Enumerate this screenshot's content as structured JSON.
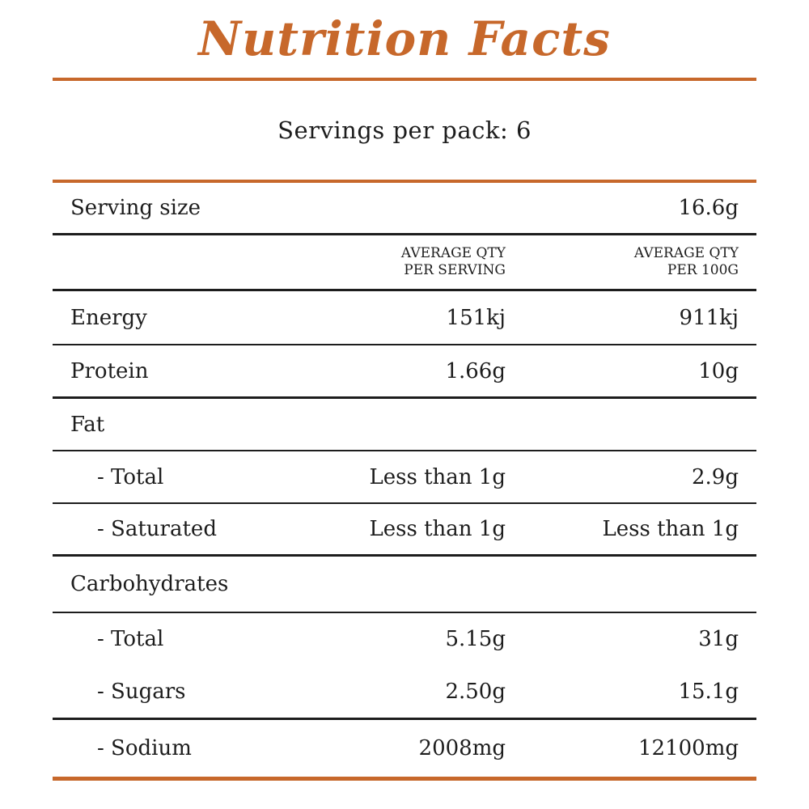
{
  "title": "Nutrition Facts",
  "servings_per_pack": "Servings per pack: 6",
  "serving_size": {
    "label": "Serving size",
    "value": "16.6g"
  },
  "columns": {
    "per_serving": [
      "AVERAGE QTY",
      "PER SERVING"
    ],
    "per_100g": [
      "AVERAGE QTY",
      "PER 100G"
    ]
  },
  "rows": [
    {
      "label": "Energy",
      "per_serving": "151kj",
      "per_100g": "911kj"
    },
    {
      "label": "Protein",
      "per_serving": "1.66g",
      "per_100g": "10g"
    },
    {
      "label": "Fat",
      "per_serving": "",
      "per_100g": ""
    },
    {
      "label": "- Total",
      "per_serving": "Less than 1g",
      "per_100g": "2.9g"
    },
    {
      "label": "- Saturated",
      "per_serving": "Less than 1g",
      "per_100g": "Less than 1g"
    },
    {
      "label": "Carbohydrates",
      "per_serving": "",
      "per_100g": ""
    },
    {
      "label": "- Total",
      "per_serving": "5.15g",
      "per_100g": "31g"
    },
    {
      "label": "- Sugars",
      "per_serving": "2.50g",
      "per_100g": "15.1g"
    },
    {
      "label": "- Sodium",
      "per_serving": "2008mg",
      "per_100g": "12100mg"
    }
  ],
  "colors": {
    "accent": "#c7682b",
    "text": "#1d1d1d"
  }
}
